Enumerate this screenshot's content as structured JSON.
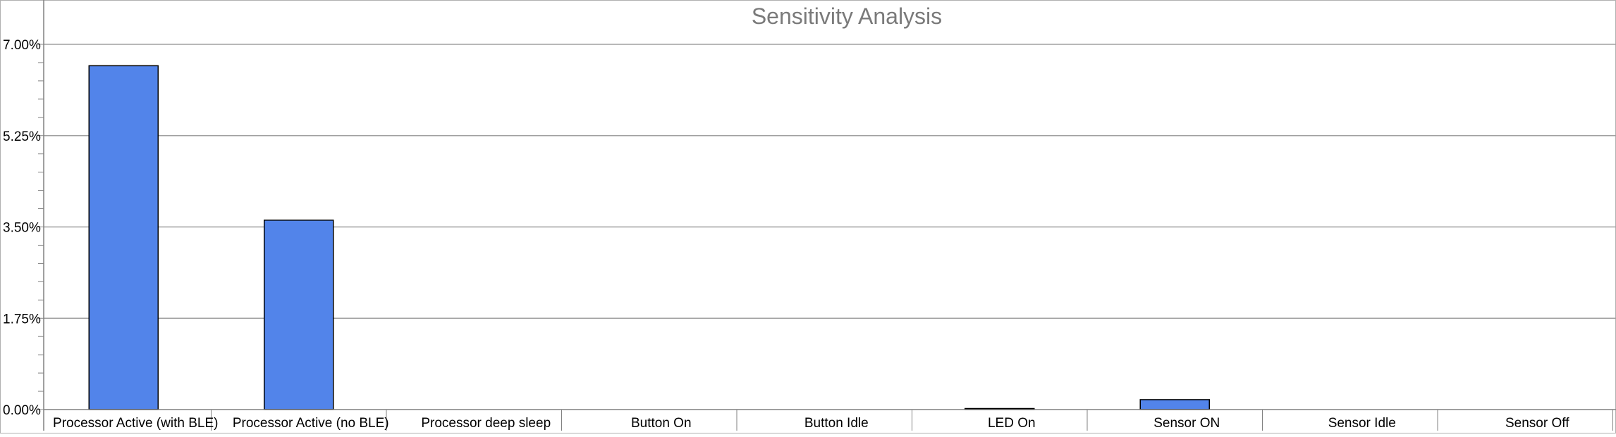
{
  "chart_data": {
    "type": "bar",
    "title": "Sensitivity Analysis",
    "xlabel": "",
    "ylabel": "",
    "categories": [
      "Processor Active (with BLE)",
      "Processor Active (no BLE)",
      "Processor deep sleep",
      "Button On",
      "Button Idle",
      "LED On",
      "Sensor ON",
      "Sensor Idle",
      "Sensor Off"
    ],
    "values": [
      6.59,
      3.63,
      0.0,
      0.0,
      0.0,
      0.02,
      0.19,
      0.0,
      0.0
    ],
    "value_format": "percent",
    "ylim": [
      0,
      7
    ],
    "yticks": [
      0,
      1.75,
      3.5,
      5.25,
      7
    ],
    "ytick_labels": [
      "0.00%",
      "1.75%",
      "3.50%",
      "5.25%",
      "7.00%"
    ],
    "grid": true,
    "legend": "none",
    "colors": {
      "bar_fill": "#5284ea",
      "bar_stroke": "#000000",
      "grid": "#a0a0a0",
      "axis": "#808080",
      "title": "#7a7a7a"
    }
  }
}
